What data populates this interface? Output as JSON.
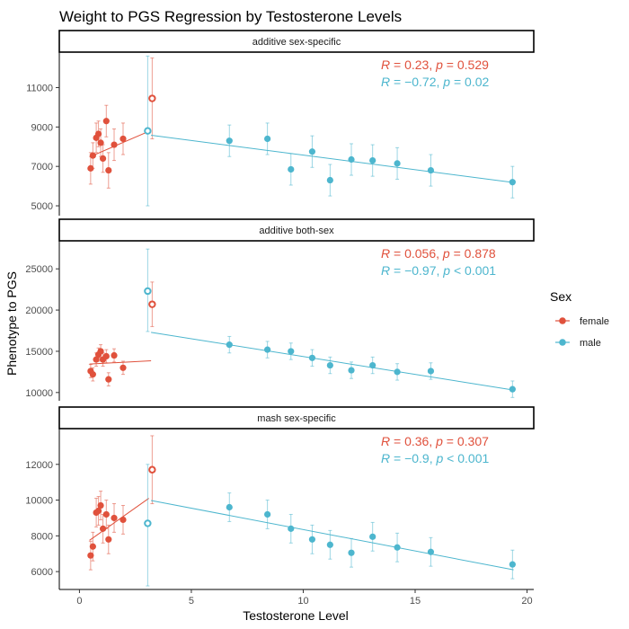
{
  "chart_data": {
    "type": "scatter",
    "title": "Weight to PGS Regression by Testosterone Levels",
    "xlabel": "Testosterone Level",
    "ylabel": "Phenotype to PGS",
    "x_ticks": [
      0,
      5,
      10,
      15,
      20
    ],
    "xlim": [
      -0.9,
      20.3
    ],
    "colors": {
      "female": "#E0513C",
      "male": "#4DB6CE"
    },
    "legend": {
      "title": "Sex",
      "placement": "right",
      "entries": [
        "female",
        "male"
      ]
    },
    "grid": false,
    "panels": [
      {
        "strip": "additive sex-specific",
        "ylim": [
          4500,
          12800
        ],
        "y_ticks": [
          5000,
          7000,
          9000,
          11000
        ],
        "y_tick_labels": [
          "5000",
          "7000",
          "9000",
          "11000"
        ],
        "annotations": [
          {
            "series": "female",
            "R": "0.23",
            "p": "0.529",
            "p_op": "="
          },
          {
            "series": "male",
            "R": "−0.72",
            "p": "0.02",
            "p_op": "="
          }
        ],
        "female": {
          "points": [
            [
              0.5,
              6900,
              6100,
              7700
            ],
            [
              0.6,
              7550,
              6900,
              8200
            ],
            [
              0.75,
              8450,
              7700,
              9200
            ],
            [
              0.85,
              8650,
              8000,
              9300
            ],
            [
              0.95,
              8200,
              7500,
              8900
            ],
            [
              1.05,
              7400,
              6700,
              8100
            ],
            [
              1.2,
              9300,
              8500,
              10100
            ],
            [
              1.3,
              6800,
              5900,
              7700
            ],
            [
              1.55,
              8100,
              7300,
              8900
            ],
            [
              1.95,
              8400,
              7600,
              9200
            ]
          ],
          "open_point": [
            3.25,
            10450,
            8400,
            12500
          ],
          "fit": [
            [
              0.45,
              7480
            ],
            [
              3.1,
              8780
            ]
          ]
        },
        "male": {
          "points": [
            [
              6.7,
              8300,
              7500,
              9100
            ],
            [
              8.4,
              8400,
              7600,
              9200
            ],
            [
              9.45,
              6850,
              6050,
              7650
            ],
            [
              10.4,
              7750,
              6950,
              8550
            ],
            [
              11.2,
              6300,
              5500,
              7100
            ],
            [
              12.15,
              7350,
              6550,
              8150
            ],
            [
              13.1,
              7300,
              6500,
              8100
            ],
            [
              14.2,
              7150,
              6350,
              7950
            ],
            [
              15.7,
              6800,
              6000,
              7600
            ],
            [
              19.35,
              6200,
              5400,
              7000
            ]
          ],
          "open_point": [
            3.05,
            8800,
            5000,
            12600
          ],
          "fit": [
            [
              3.2,
              8580
            ],
            [
              19.4,
              6180
            ]
          ]
        }
      },
      {
        "strip": "additive both-sex",
        "ylim": [
          9000,
          28400
        ],
        "y_ticks": [
          10000,
          15000,
          20000,
          25000
        ],
        "y_tick_labels": [
          "10000",
          "15000",
          "20000",
          "25000"
        ],
        "annotations": [
          {
            "series": "female",
            "R": "0.056",
            "p": "0.878",
            "p_op": "="
          },
          {
            "series": "male",
            "R": "−0.97",
            "p": "0.001",
            "p_op": "<"
          }
        ],
        "female": {
          "points": [
            [
              0.5,
              12600,
              11800,
              13400
            ],
            [
              0.6,
              12200,
              11400,
              13000
            ],
            [
              0.75,
              14000,
              13200,
              14800
            ],
            [
              0.85,
              14600,
              13800,
              15400
            ],
            [
              0.95,
              15000,
              14200,
              15800
            ],
            [
              1.05,
              14000,
              13200,
              14800
            ],
            [
              1.2,
              14400,
              13600,
              15200
            ],
            [
              1.3,
              11600,
              10800,
              12400
            ],
            [
              1.55,
              14500,
              13700,
              15300
            ],
            [
              1.95,
              13000,
              12200,
              13800
            ]
          ],
          "open_point": [
            3.25,
            20700,
            18000,
            23400
          ],
          "fit": [
            [
              0.45,
              13450
            ],
            [
              3.2,
              13850
            ]
          ]
        },
        "male": {
          "points": [
            [
              6.7,
              15800,
              14800,
              16800
            ],
            [
              8.4,
              15200,
              14200,
              16200
            ],
            [
              9.45,
              15000,
              14000,
              16000
            ],
            [
              10.4,
              14200,
              13200,
              15200
            ],
            [
              11.2,
              13300,
              12300,
              14300
            ],
            [
              12.15,
              12700,
              11700,
              13700
            ],
            [
              13.1,
              13300,
              12300,
              14300
            ],
            [
              14.2,
              12500,
              11500,
              13500
            ],
            [
              15.7,
              12600,
              11600,
              13600
            ],
            [
              19.35,
              10400,
              9400,
              11400
            ]
          ],
          "open_point": [
            3.05,
            22300,
            17400,
            27400
          ],
          "fit": [
            [
              3.2,
              17300
            ],
            [
              19.4,
              10300
            ]
          ]
        }
      },
      {
        "strip": "mash sex-specific",
        "ylim": [
          5000,
          14000
        ],
        "y_ticks": [
          6000,
          8000,
          10000,
          12000
        ],
        "y_tick_labels": [
          "6000",
          "8000",
          "10000",
          "12000"
        ],
        "annotations": [
          {
            "series": "female",
            "R": "0.36",
            "p": "0.307",
            "p_op": "="
          },
          {
            "series": "male",
            "R": "−0.9",
            "p": "0.001",
            "p_op": "<"
          }
        ],
        "female": {
          "points": [
            [
              0.5,
              6900,
              6100,
              7700
            ],
            [
              0.6,
              7400,
              6600,
              8200
            ],
            [
              0.75,
              9300,
              8500,
              10100
            ],
            [
              0.85,
              9400,
              8600,
              10200
            ],
            [
              0.95,
              9700,
              8900,
              10500
            ],
            [
              1.05,
              8400,
              7600,
              9200
            ],
            [
              1.2,
              9200,
              8400,
              10000
            ],
            [
              1.3,
              7800,
              7000,
              8600
            ],
            [
              1.55,
              9000,
              8200,
              9800
            ],
            [
              1.95,
              8900,
              8100,
              9700
            ]
          ],
          "open_point": [
            3.25,
            11700,
            9800,
            13600
          ],
          "fit": [
            [
              0.45,
              7750
            ],
            [
              3.1,
              10100
            ]
          ]
        },
        "male": {
          "points": [
            [
              6.7,
              9600,
              8800,
              10400
            ],
            [
              8.4,
              9200,
              8400,
              10000
            ],
            [
              9.45,
              8400,
              7600,
              9200
            ],
            [
              10.4,
              7800,
              7000,
              8600
            ],
            [
              11.2,
              7500,
              6700,
              8300
            ],
            [
              12.15,
              7050,
              6250,
              7850
            ],
            [
              13.1,
              7950,
              7150,
              8750
            ],
            [
              14.2,
              7350,
              6550,
              8150
            ],
            [
              15.7,
              7100,
              6300,
              7900
            ],
            [
              19.35,
              6400,
              5600,
              7200
            ]
          ],
          "open_point": [
            3.05,
            8700,
            5200,
            12000
          ],
          "fit": [
            [
              3.2,
              9980
            ],
            [
              19.4,
              6100
            ]
          ]
        }
      }
    ]
  }
}
